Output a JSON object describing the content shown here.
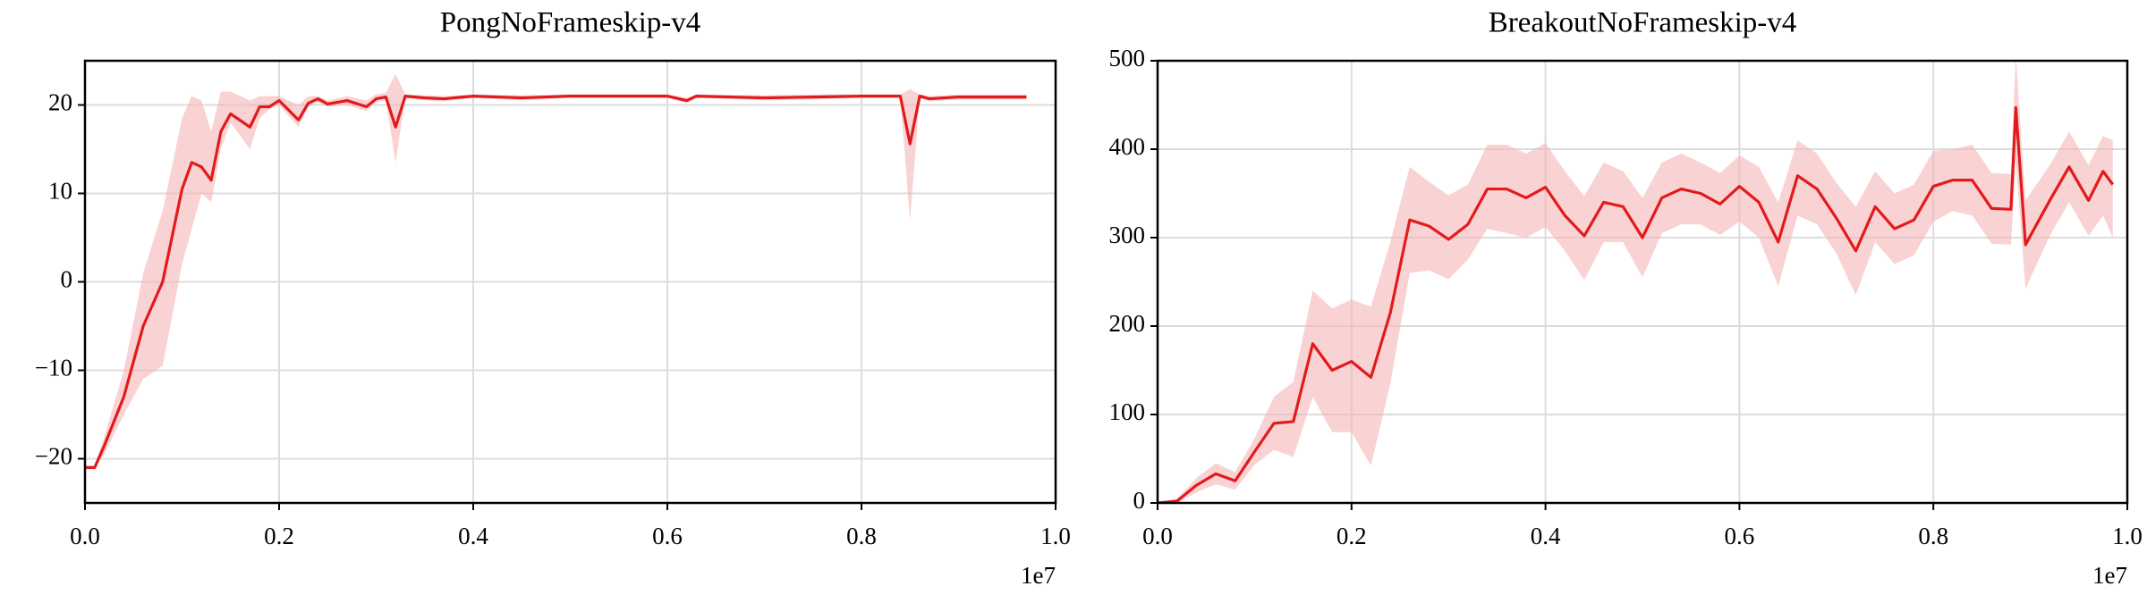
{
  "chart_data": [
    {
      "type": "line",
      "title": "PongNoFrameskip-v4",
      "x_offset_label": "1e7",
      "x": [
        0,
        0.01,
        0.02,
        0.04,
        0.06,
        0.08,
        0.1,
        0.11,
        0.12,
        0.13,
        0.14,
        0.15,
        0.17,
        0.18,
        0.19,
        0.2,
        0.22,
        0.23,
        0.24,
        0.25,
        0.27,
        0.29,
        0.3,
        0.31,
        0.32,
        0.33,
        0.35,
        0.37,
        0.4,
        0.45,
        0.5,
        0.55,
        0.6,
        0.62,
        0.63,
        0.7,
        0.75,
        0.8,
        0.84,
        0.85,
        0.86,
        0.87,
        0.9,
        0.95,
        0.97
      ],
      "values": [
        -21,
        -21,
        -18.5,
        -13,
        -5,
        0,
        10.5,
        13.5,
        13,
        11.5,
        17,
        19,
        17.5,
        19.8,
        19.8,
        20.5,
        18.3,
        20.2,
        20.7,
        20.1,
        20.5,
        19.8,
        20.7,
        20.9,
        17.5,
        21,
        20.8,
        20.7,
        21,
        20.8,
        21,
        21,
        21,
        20.5,
        21,
        20.8,
        20.9,
        21,
        21,
        15.6,
        21,
        20.7,
        20.9,
        20.9,
        20.9
      ],
      "band_lower": [
        -21,
        -21,
        -19.5,
        -15,
        -11,
        -9.5,
        2,
        6,
        10,
        9,
        15,
        18,
        15,
        18.5,
        19.5,
        20,
        17.5,
        19.8,
        20.3,
        19.8,
        20,
        19.3,
        20.3,
        20.5,
        13.5,
        20.8,
        20.5,
        20.4,
        20.8,
        20.5,
        20.8,
        20.8,
        20.8,
        20.2,
        20.8,
        20.5,
        20.6,
        20.8,
        20.8,
        7,
        20.8,
        20.4,
        20.6,
        20.6,
        20.6
      ],
      "band_upper": [
        -20.8,
        -20.8,
        -17.5,
        -10,
        1,
        8,
        18.5,
        21,
        20.5,
        17,
        21.5,
        21.5,
        20.5,
        21,
        21,
        21,
        20,
        21,
        21,
        20.5,
        21,
        20.5,
        21.2,
        21.4,
        23.5,
        21.2,
        21.1,
        21,
        21.2,
        21.1,
        21.2,
        21.2,
        21.2,
        20.8,
        21.2,
        21.1,
        21.2,
        21.2,
        21.2,
        21.8,
        21.2,
        21,
        21.2,
        21.2,
        21.2
      ],
      "color": "#e31a1c",
      "band_color": "#f5b5b5",
      "xlim": [
        0,
        1
      ],
      "xticks": [
        {
          "value": 0,
          "label": "0.0"
        },
        0.2,
        0.4,
        0.6,
        0.8,
        {
          "value": 1,
          "label": "1.0"
        }
      ],
      "ylim": [
        -25,
        25
      ],
      "yticks": [
        {
          "value": -20,
          "label": "−20"
        },
        {
          "value": -10,
          "label": "−10"
        },
        0,
        10,
        20
      ],
      "grid": true
    },
    {
      "type": "line",
      "title": "BreakoutNoFrameskip-v4",
      "x_offset_label": "1e7",
      "x": [
        0,
        0.02,
        0.04,
        0.06,
        0.08,
        0.1,
        0.12,
        0.14,
        0.16,
        0.18,
        0.2,
        0.22,
        0.24,
        0.26,
        0.28,
        0.3,
        0.32,
        0.34,
        0.36,
        0.38,
        0.4,
        0.42,
        0.44,
        0.46,
        0.48,
        0.5,
        0.52,
        0.54,
        0.56,
        0.58,
        0.6,
        0.62,
        0.64,
        0.66,
        0.68,
        0.7,
        0.72,
        0.74,
        0.76,
        0.78,
        0.8,
        0.82,
        0.84,
        0.86,
        0.88,
        0.885,
        0.895,
        0.92,
        0.94,
        0.96,
        0.975,
        0.985
      ],
      "values": [
        0,
        2,
        20,
        33,
        25,
        58,
        90,
        92,
        180,
        150,
        160,
        142,
        215,
        320,
        313,
        298,
        315,
        355,
        355,
        345,
        357,
        325,
        302,
        340,
        335,
        300,
        345,
        355,
        350,
        338,
        358,
        340,
        295,
        370,
        355,
        322,
        285,
        335,
        310,
        320,
        358,
        365,
        365,
        333,
        332,
        447,
        292,
        342,
        380,
        342,
        375,
        360
      ],
      "band_lower": [
        0,
        0,
        12,
        21,
        15,
        43,
        60,
        52,
        120,
        80,
        80,
        42,
        135,
        260,
        263,
        253,
        275,
        310,
        305,
        300,
        312,
        285,
        252,
        295,
        295,
        255,
        305,
        315,
        315,
        303,
        318,
        300,
        245,
        325,
        315,
        282,
        235,
        295,
        270,
        280,
        318,
        330,
        325,
        293,
        292,
        387,
        242,
        302,
        340,
        302,
        325,
        300
      ],
      "band_upper": [
        0,
        5,
        28,
        45,
        35,
        73,
        120,
        137,
        240,
        220,
        230,
        222,
        295,
        380,
        363,
        348,
        360,
        405,
        405,
        395,
        407,
        375,
        347,
        385,
        375,
        345,
        385,
        395,
        385,
        373,
        393,
        380,
        340,
        410,
        395,
        362,
        335,
        375,
        350,
        360,
        398,
        400,
        405,
        373,
        372,
        507,
        342,
        382,
        420,
        382,
        415,
        410
      ],
      "color": "#e31a1c",
      "band_color": "#f5b5b5",
      "xlim": [
        0,
        1
      ],
      "xticks": [
        {
          "value": 0,
          "label": "0.0"
        },
        0.2,
        0.4,
        0.6,
        0.8,
        {
          "value": 1,
          "label": "1.0"
        }
      ],
      "ylim": [
        0,
        500
      ],
      "yticks": [
        0,
        100,
        200,
        300,
        400,
        500
      ],
      "grid": true
    }
  ]
}
